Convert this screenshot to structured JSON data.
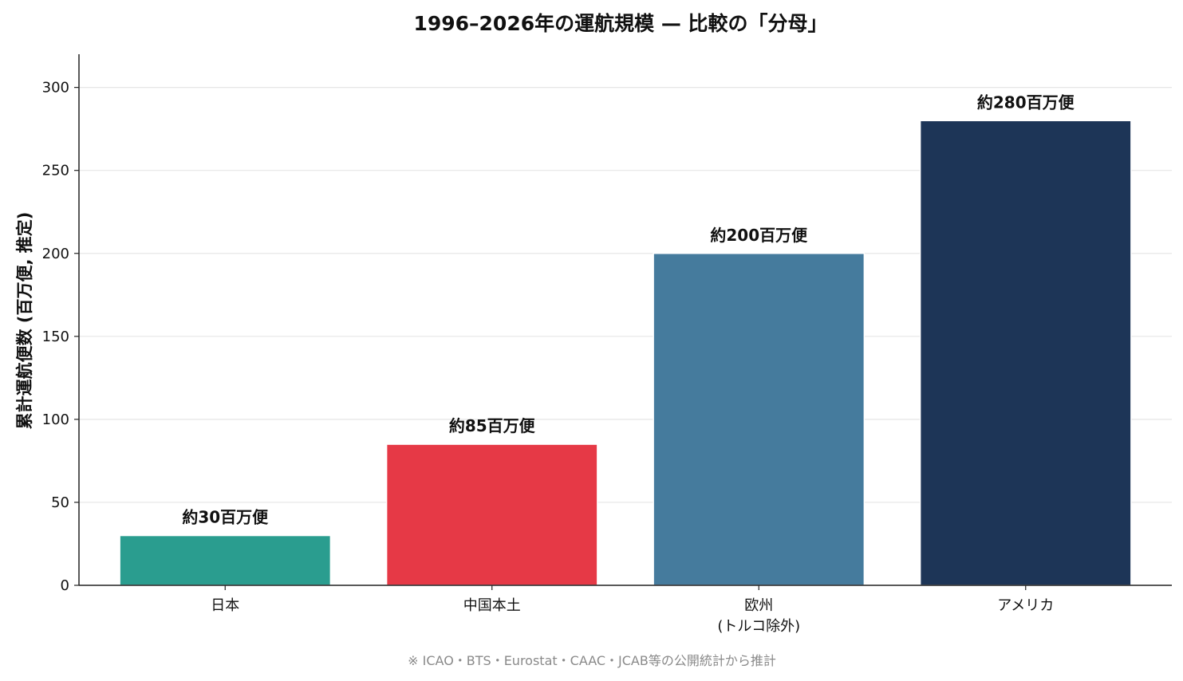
{
  "chart_data": {
    "type": "bar",
    "title": "1996–2026年の運航規模 — 比較の「分母」",
    "xlabel": "",
    "ylabel": "累計運航便数 (百万便, 推定)",
    "categories": [
      "日本",
      "中国本土",
      "欧州\n(トルコ除外)",
      "アメリカ"
    ],
    "values": [
      30,
      85,
      200,
      280
    ],
    "data_labels": [
      "約30百万便",
      "約85百万便",
      "約200百万便",
      "約280百万便"
    ],
    "colors": [
      "#2a9d8f",
      "#e63946",
      "#457b9d",
      "#1d3557"
    ],
    "ylim": [
      0,
      320
    ],
    "yticks": [
      0,
      50,
      100,
      150,
      200,
      250,
      300
    ],
    "grid": "horizontal",
    "legend": "none"
  },
  "footnote": "※ ICAO・BTS・Eurostat・CAAC・JCAB等の公開統計から推計"
}
